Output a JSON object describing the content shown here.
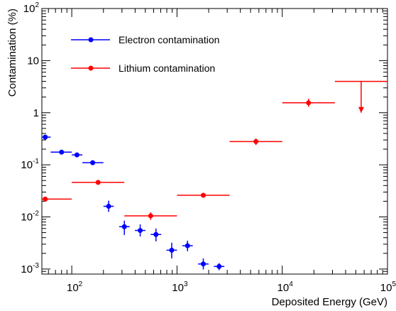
{
  "chart_data": {
    "type": "scatter",
    "xlabel": "Deposited Energy (GeV)",
    "ylabel": "Contamination (%)",
    "xscale": "log",
    "yscale": "log",
    "xlim": [
      52,
      100000
    ],
    "ylim": [
      0.0008,
      100
    ],
    "grid": false,
    "legend_position": "top-left",
    "x_ticks": [
      {
        "base": "10",
        "exp": "2",
        "value": 100
      },
      {
        "base": "10",
        "exp": "3",
        "value": 1000
      },
      {
        "base": "10",
        "exp": "4",
        "value": 10000
      },
      {
        "base": "10",
        "exp": "5",
        "value": 100000
      }
    ],
    "y_ticks": [
      {
        "base": "10",
        "exp": "-3",
        "value": 0.001
      },
      {
        "base": "10",
        "exp": "-2",
        "value": 0.01
      },
      {
        "base": "10",
        "exp": "-1",
        "value": 0.1
      },
      {
        "base": "1",
        "exp": "",
        "value": 1
      },
      {
        "base": "10",
        "exp": "",
        "value": 10
      },
      {
        "base": "10",
        "exp": "2",
        "value": 100
      }
    ],
    "series": [
      {
        "name": "Electron contamination",
        "color": "#0000ff",
        "points": [
          {
            "x": 56,
            "xlo": 50,
            "xhi": 63,
            "y": 0.34,
            "ylo": 0.33,
            "yhi": 0.35
          },
          {
            "x": 80,
            "xlo": 63,
            "xhi": 100,
            "y": 0.175,
            "ylo": 0.168,
            "yhi": 0.182
          },
          {
            "x": 112,
            "xlo": 100,
            "xhi": 126,
            "y": 0.155,
            "ylo": 0.14,
            "yhi": 0.17
          },
          {
            "x": 158,
            "xlo": 126,
            "xhi": 200,
            "y": 0.11,
            "ylo": 0.099,
            "yhi": 0.122
          },
          {
            "x": 224,
            "xlo": 200,
            "xhi": 251,
            "y": 0.016,
            "ylo": 0.0125,
            "yhi": 0.0205
          },
          {
            "x": 316,
            "xlo": 282,
            "xhi": 355,
            "y": 0.0065,
            "ylo": 0.0045,
            "yhi": 0.0085
          },
          {
            "x": 447,
            "xlo": 398,
            "xhi": 501,
            "y": 0.0055,
            "ylo": 0.0042,
            "yhi": 0.0072
          },
          {
            "x": 631,
            "xlo": 562,
            "xhi": 708,
            "y": 0.0046,
            "ylo": 0.0034,
            "yhi": 0.006
          },
          {
            "x": 891,
            "xlo": 794,
            "xhi": 1000,
            "y": 0.0023,
            "ylo": 0.0016,
            "yhi": 0.0032
          },
          {
            "x": 1259,
            "xlo": 1122,
            "xhi": 1413,
            "y": 0.0028,
            "ylo": 0.0022,
            "yhi": 0.0035
          },
          {
            "x": 1778,
            "xlo": 1585,
            "xhi": 1995,
            "y": 0.00125,
            "ylo": 0.00098,
            "yhi": 0.0016
          },
          {
            "x": 2512,
            "xlo": 2239,
            "xhi": 2818,
            "y": 0.00112,
            "ylo": 0.00095,
            "yhi": 0.0013
          }
        ]
      },
      {
        "name": "Lithium contamination",
        "color": "#ff0000",
        "points": [
          {
            "x": 56,
            "xlo": 50,
            "xhi": 100,
            "y": 0.022,
            "ylo": 0.0212,
            "yhi": 0.0228
          },
          {
            "x": 178,
            "xlo": 100,
            "xhi": 316,
            "y": 0.046,
            "ylo": 0.0445,
            "yhi": 0.0475
          },
          {
            "x": 562,
            "xlo": 316,
            "xhi": 1000,
            "y": 0.0105,
            "ylo": 0.0088,
            "yhi": 0.0122
          },
          {
            "x": 1778,
            "xlo": 1000,
            "xhi": 3162,
            "y": 0.026,
            "ylo": 0.025,
            "yhi": 0.027
          },
          {
            "x": 5623,
            "xlo": 3162,
            "xhi": 10000,
            "y": 0.28,
            "ylo": 0.24,
            "yhi": 0.32
          },
          {
            "x": 17783,
            "xlo": 10000,
            "xhi": 31623,
            "y": 1.55,
            "ylo": 1.3,
            "yhi": 1.85
          }
        ],
        "upper_limits": [
          {
            "x": 56234,
            "xlo": 31623,
            "xhi": 100000,
            "y": 4.0,
            "arrow_to": 1.0
          }
        ]
      }
    ]
  }
}
